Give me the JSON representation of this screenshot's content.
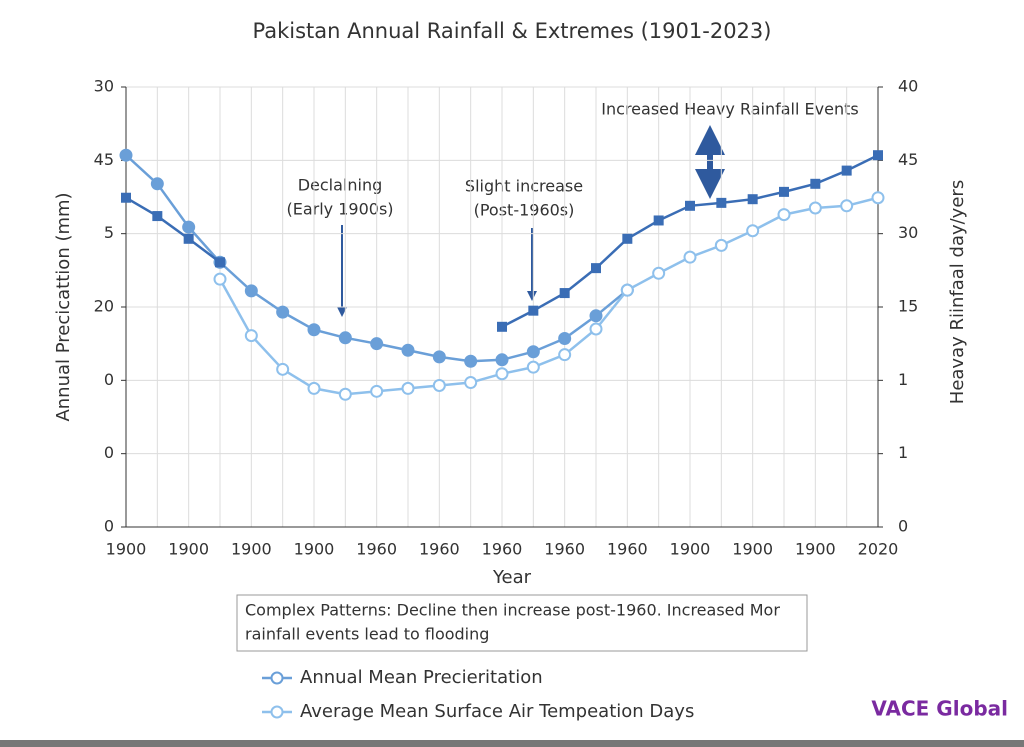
{
  "chart_data": {
    "type": "line",
    "title": "Pakistan Annual Rainfall & Extremes  (1901-2023)",
    "xlabel": "Year",
    "ylabel": "Annual Precicattion (mm)",
    "y2label": "Heavay Riinfaal day/yers",
    "categories": [
      "1900",
      null,
      "1900",
      null,
      "1900",
      null,
      "1900",
      null,
      "1960",
      null,
      "1960",
      null,
      "1960",
      null,
      "1960",
      null,
      "1960",
      null,
      "1900",
      null,
      "1900",
      null,
      "1900",
      null,
      "2020"
    ],
    "ylim": [
      0,
      6
    ],
    "yticks": [
      {
        "value": 0,
        "label": "0"
      },
      {
        "value": 1,
        "label": "0"
      },
      {
        "value": 2,
        "label": "0"
      },
      {
        "value": 3,
        "label": "20"
      },
      {
        "value": 4,
        "label": "5"
      },
      {
        "value": 5,
        "label": "45"
      },
      {
        "value": 6,
        "label": "30"
      }
    ],
    "y2lim": [
      0,
      6
    ],
    "y2ticks": [
      0,
      {
        "value": 1,
        "label": "1"
      },
      {
        "value": 2,
        "label": "1"
      },
      {
        "value": 3,
        "label": "15"
      },
      {
        "value": 4,
        "label": "30"
      },
      {
        "value": 5,
        "label": "45"
      },
      {
        "value": 6,
        "label": "40"
      }
    ],
    "grid": true,
    "series": [
      {
        "name": "Annual Mean Precieritation",
        "color": "#6a9fd8",
        "marker": "circle",
        "values": [
          5.07,
          4.68,
          4.09,
          3.61,
          3.22,
          2.93,
          2.69,
          2.58,
          2.5,
          2.41,
          2.32,
          2.26,
          2.28,
          2.39,
          2.57,
          2.88,
          3.23,
          null,
          null,
          null,
          null,
          null,
          null,
          null,
          null
        ]
      },
      {
        "name": "Average Mean Surface Air Tempeation Days",
        "color": "#8ec0ec",
        "marker": "hollow",
        "axis": "y2",
        "values": [
          null,
          null,
          null,
          3.38,
          2.61,
          2.15,
          1.89,
          1.81,
          1.85,
          1.89,
          1.93,
          1.97,
          2.09,
          2.18,
          2.35,
          2.7,
          3.23,
          3.46,
          3.68,
          3.84,
          4.04,
          4.26,
          4.35,
          4.38,
          4.49
        ]
      },
      {
        "color": "#3a6db5",
        "marker": "square",
        "values": [
          4.49,
          4.24,
          3.93,
          3.61,
          null,
          null,
          null,
          null,
          null,
          null,
          null,
          null,
          2.73,
          2.95,
          3.19,
          3.53,
          3.93,
          4.18,
          4.38,
          4.42,
          4.47,
          4.57,
          4.68,
          4.86,
          5.07
        ]
      }
    ],
    "annotations": [
      {
        "lines": [
          "Declalning",
          "(Early 1900s)"
        ]
      },
      {
        "lines": [
          "Slight increase",
          "(Post-1960s)"
        ]
      },
      {
        "lines": [
          "Increased Heavy Rainfall Events"
        ]
      }
    ],
    "note": [
      "Complex Patterns: Decline then increase post-1960. Increased  Mor",
      "rainfall events lead to flooding"
    ],
    "watermark": "VACE Global"
  }
}
